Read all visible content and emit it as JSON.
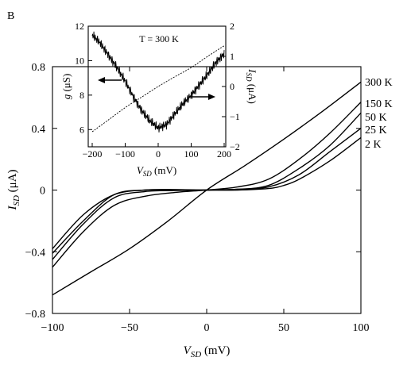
{
  "panel_label": "B",
  "chart_data": [
    {
      "type": "line",
      "xlabel": "V_SD (mV)",
      "ylabel": "I_SD (μA)",
      "xlim": [
        -100,
        100
      ],
      "ylim": [
        -0.8,
        0.8
      ],
      "x_ticks": [
        -100,
        -50,
        0,
        50,
        100
      ],
      "x_tick_labels": [
        "−100",
        "−50",
        "0",
        "50",
        "100"
      ],
      "y_ticks": [
        -0.8,
        -0.4,
        0,
        0.4,
        0.8
      ],
      "y_tick_labels": [
        "−0.8",
        "−0.4",
        "0",
        "0.4",
        "0.8"
      ],
      "grid": false,
      "legend": "curve labels at right end",
      "series": [
        {
          "name": "300 K",
          "x": [
            -100,
            -75,
            -50,
            -25,
            0,
            25,
            50,
            75,
            100
          ],
          "y": [
            -0.68,
            -0.53,
            -0.38,
            -0.2,
            0,
            0.16,
            0.33,
            0.51,
            0.7
          ]
        },
        {
          "name": "150 K",
          "x": [
            -100,
            -80,
            -60,
            -40,
            -20,
            0,
            20,
            40,
            60,
            80,
            100
          ],
          "y": [
            -0.5,
            -0.27,
            -0.1,
            -0.04,
            -0.015,
            0,
            0.02,
            0.07,
            0.2,
            0.37,
            0.57
          ]
        },
        {
          "name": "50 K",
          "x": [
            -100,
            -80,
            -60,
            -40,
            -20,
            0,
            20,
            40,
            60,
            80,
            100
          ],
          "y": [
            -0.45,
            -0.22,
            -0.05,
            -0.01,
            -0.003,
            0,
            0.005,
            0.03,
            0.14,
            0.29,
            0.5
          ]
        },
        {
          "name": "25 K",
          "x": [
            -100,
            -80,
            -60,
            -40,
            -20,
            0,
            20,
            40,
            60,
            80,
            100
          ],
          "y": [
            -0.41,
            -0.2,
            -0.03,
            0.0,
            0.002,
            0,
            0.005,
            0.02,
            0.1,
            0.25,
            0.4
          ]
        },
        {
          "name": "2 K",
          "x": [
            -100,
            -80,
            -60,
            -40,
            -20,
            0,
            20,
            40,
            50,
            60,
            80,
            100
          ],
          "y": [
            -0.38,
            -0.16,
            -0.03,
            0.0,
            0.003,
            0,
            0.0,
            0.01,
            0.03,
            0.07,
            0.19,
            0.34
          ]
        }
      ]
    },
    {
      "type": "line",
      "annotation": "T = 300 K",
      "xlabel": "V_SD (mV)",
      "ylabel_left": "g (μS)",
      "ylabel_right": "I_SD (μA)",
      "xlim": [
        -200,
        200
      ],
      "ylim_left": [
        5,
        12
      ],
      "ylim_right": [
        -2,
        2
      ],
      "x_ticks": [
        -200,
        -100,
        0,
        100,
        200
      ],
      "x_tick_labels": [
        "−200",
        "−100",
        "0",
        "100",
        "200"
      ],
      "y_ticks_left": [
        6,
        8,
        10,
        12
      ],
      "y_tick_labels_left": [
        "6",
        "8",
        "10",
        "12"
      ],
      "y_ticks_right": [
        -2,
        -1,
        0,
        1,
        2
      ],
      "y_tick_labels_right": [
        "−2",
        "−1",
        "0",
        "1",
        "2"
      ],
      "grid": false,
      "series": [
        {
          "axis": "left",
          "x": [
            -200,
            -175,
            -150,
            -125,
            -100,
            -75,
            -50,
            -25,
            0,
            25,
            50,
            75,
            100,
            125,
            150,
            175,
            200
          ],
          "y": [
            11.5,
            11.0,
            10.3,
            9.6,
            8.8,
            7.9,
            7.1,
            6.5,
            6.1,
            6.3,
            6.9,
            7.5,
            8.0,
            8.6,
            9.2,
            9.9,
            10.4
          ]
        },
        {
          "axis": "right",
          "x": [
            -200,
            -150,
            -100,
            -50,
            0,
            50,
            100,
            150,
            200
          ],
          "y": [
            -1.5,
            -1.1,
            -0.7,
            -0.35,
            0,
            0.32,
            0.63,
            1.0,
            1.35
          ]
        }
      ]
    }
  ]
}
